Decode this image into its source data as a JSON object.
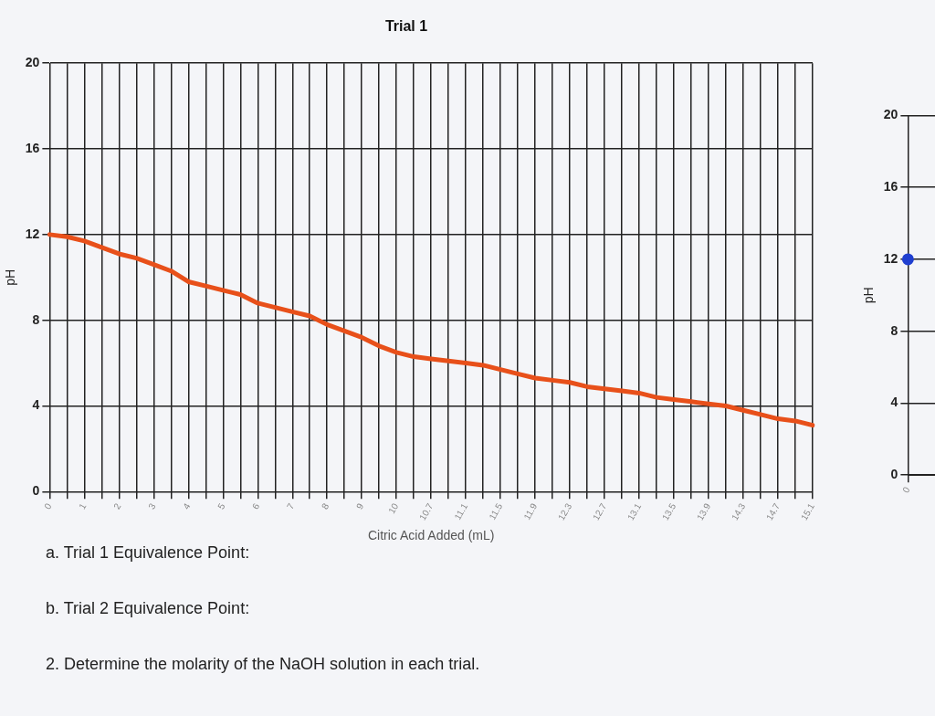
{
  "chart_data": [
    {
      "type": "line",
      "title": "Trial 1",
      "xlabel": "Citric Acid Added (mL)",
      "ylabel": "pH",
      "categories": [
        "0",
        null,
        "1",
        null,
        "2",
        null,
        "3",
        null,
        "4",
        null,
        "5",
        null,
        "6",
        null,
        "7",
        null,
        "8",
        null,
        "9",
        null,
        "10",
        null,
        "10.7",
        null,
        "11.1",
        null,
        "11.5",
        null,
        "11.9",
        null,
        "12.3",
        null,
        "12.7",
        null,
        "13.1",
        null,
        "13.5",
        null,
        "13.9",
        null,
        "14.3",
        null,
        "14.7",
        null,
        "15.1"
      ],
      "series": [
        {
          "color": "#e8501a",
          "values": [
            12.0,
            11.9,
            11.7,
            11.4,
            11.1,
            10.9,
            10.6,
            10.3,
            9.8,
            9.6,
            9.4,
            9.2,
            8.8,
            8.6,
            8.4,
            8.2,
            7.8,
            7.5,
            7.2,
            6.8,
            6.5,
            6.3,
            6.2,
            6.1,
            6.0,
            5.9,
            5.7,
            5.5,
            5.3,
            5.2,
            5.1,
            4.9,
            4.8,
            4.7,
            4.6,
            4.4,
            4.3,
            4.2,
            4.1,
            4.0,
            3.8,
            3.6,
            3.4,
            3.3,
            3.1
          ]
        }
      ],
      "ylim": [
        0,
        20
      ],
      "yticks": [
        0,
        4,
        8,
        12,
        16,
        20
      ],
      "grid": true,
      "marker": "none",
      "line_style": "solid",
      "legend": false,
      "annotations": [
        "a. Trial 1 Equivalence Point:",
        "b. Trial 2 Equivalence Point:",
        "2. Determine the molarity of the NaOH solution in each trial."
      ]
    },
    {
      "type": "line",
      "ylabel": "pH",
      "categories": [
        "0"
      ],
      "series": [
        {
          "color": "#1f3fd0",
          "values": [
            12
          ]
        }
      ],
      "ylim": [
        0,
        20
      ],
      "yticks": [
        0,
        4,
        8,
        12,
        16,
        20
      ],
      "grid": true,
      "marker": "circle",
      "legend": false
    }
  ]
}
